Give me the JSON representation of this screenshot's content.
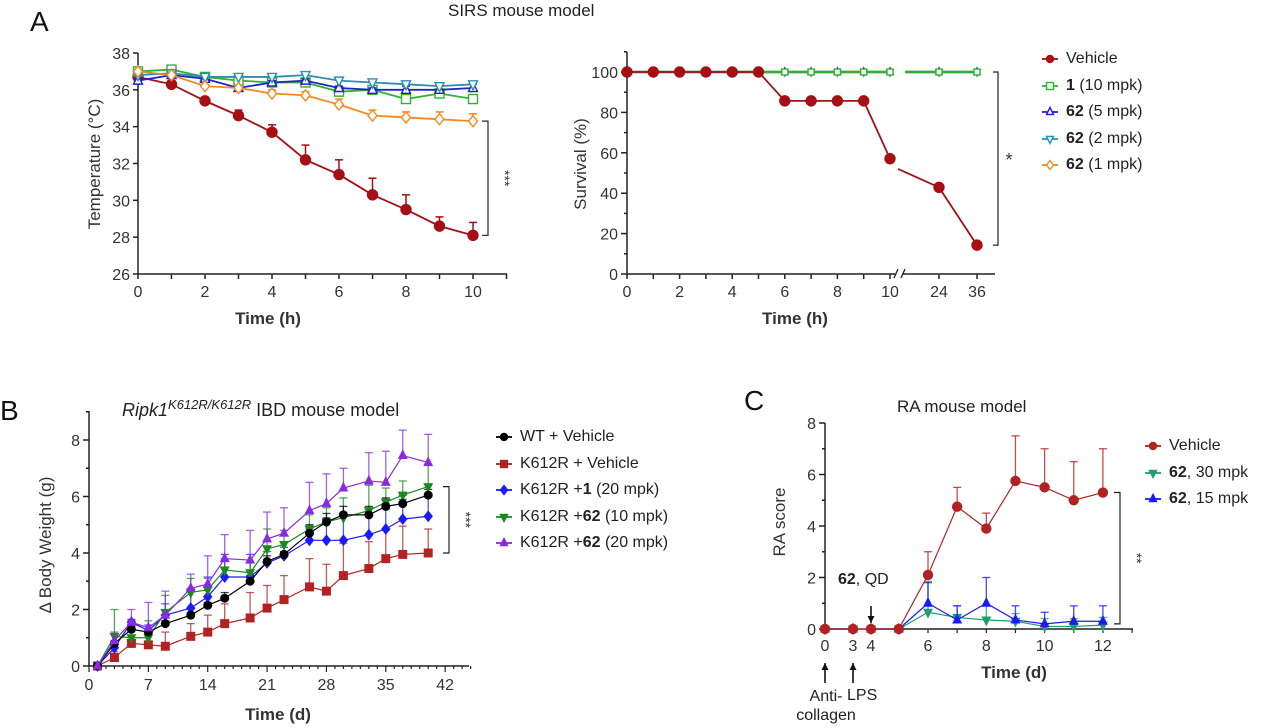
{
  "figure_title": "SIRS mouse model",
  "panel_letters": {
    "a": "A",
    "b": "B",
    "c": "C"
  },
  "chart_data": [
    {
      "id": "A-temperature",
      "type": "line",
      "title": "",
      "xlabel": "Time (h)",
      "ylabel": "Temperature (°C)",
      "xlim": [
        0,
        11
      ],
      "ylim": [
        26,
        38
      ],
      "xticks": [
        0,
        2,
        4,
        6,
        8,
        10
      ],
      "yticks": [
        26,
        28,
        30,
        32,
        34,
        36,
        38
      ],
      "x": [
        0,
        1,
        2,
        3,
        4,
        5,
        6,
        7,
        8,
        9,
        10
      ],
      "series": [
        {
          "name": "Vehicle",
          "color": "#a50f15",
          "marker": "circle-filled",
          "values": [
            36.7,
            36.3,
            35.4,
            34.6,
            33.7,
            32.2,
            31.4,
            30.3,
            29.5,
            28.6,
            28.1
          ],
          "err": [
            0.1,
            0.1,
            0.2,
            0.3,
            0.4,
            0.8,
            0.8,
            0.9,
            0.8,
            0.5,
            0.7
          ]
        },
        {
          "name": "1 (10 mpk)",
          "color": "#2db52d",
          "marker": "square-open",
          "values": [
            37.0,
            37.1,
            36.7,
            36.5,
            36.4,
            36.4,
            35.9,
            36.0,
            35.5,
            35.8,
            35.5
          ],
          "err": [
            0.1,
            0.1,
            0.1,
            0.1,
            0.1,
            0.1,
            0.1,
            0.1,
            0.1,
            0.1,
            0.1
          ]
        },
        {
          "name": "62 (5 mpk)",
          "color": "#2222c8",
          "marker": "triangle-up-open",
          "values": [
            36.5,
            36.8,
            36.6,
            36.1,
            36.4,
            36.5,
            36.1,
            36.0,
            36.0,
            36.0,
            36.1
          ],
          "err": [
            0.1,
            0.1,
            0.1,
            0.1,
            0.1,
            0.1,
            0.1,
            0.1,
            0.2,
            0.2,
            0.2
          ]
        },
        {
          "name": "62 (2 mpk)",
          "color": "#2a8fb0",
          "marker": "triangle-down-open",
          "values": [
            36.8,
            36.9,
            36.7,
            36.7,
            36.7,
            36.8,
            36.5,
            36.4,
            36.3,
            36.2,
            36.3
          ],
          "err": [
            0.1,
            0.1,
            0.1,
            0.1,
            0.1,
            0.1,
            0.1,
            0.1,
            0.1,
            0.1,
            0.1
          ]
        },
        {
          "name": "62 (1 mpk)",
          "color": "#f5891f",
          "marker": "diamond-open",
          "values": [
            37.0,
            36.8,
            36.2,
            36.1,
            35.8,
            35.7,
            35.2,
            34.6,
            34.5,
            34.4,
            34.3
          ],
          "err": [
            0.1,
            0.1,
            0.1,
            0.1,
            0.2,
            0.2,
            0.3,
            0.3,
            0.3,
            0.4,
            0.4
          ]
        }
      ],
      "annotations": [
        {
          "text": "***",
          "between": [
            "62 (1 mpk)",
            "Vehicle"
          ],
          "at_x": 10
        }
      ]
    },
    {
      "id": "A-survival",
      "type": "line",
      "title": "",
      "xlabel": "Time (h)",
      "ylabel": "Survival (%)",
      "ylim": [
        0,
        110
      ],
      "yticks": [
        0,
        20,
        40,
        60,
        80,
        100
      ],
      "x_broken_axis": true,
      "xticks": [
        "0",
        "2",
        "4",
        "6",
        "8",
        "10",
        "24",
        "36"
      ],
      "x": [
        0,
        1,
        2,
        3,
        4,
        5,
        6,
        7,
        8,
        9,
        10,
        24,
        36
      ],
      "series": [
        {
          "name": "Vehicle",
          "color": "#a50f15",
          "marker": "circle-filled",
          "values": [
            100,
            100,
            100,
            100,
            100,
            100,
            85.7,
            85.7,
            85.7,
            85.7,
            57.1,
            42.9,
            14.3
          ]
        },
        {
          "name": "1 (10 mpk)",
          "color": "#2db52d",
          "marker": "square-open",
          "values": [
            100,
            100,
            100,
            100,
            100,
            100,
            100,
            100,
            100,
            100,
            100,
            100,
            100
          ]
        },
        {
          "name": "62 (5 mpk)",
          "color": "#2222c8",
          "marker": "triangle-up-open",
          "values": [
            100,
            100,
            100,
            100,
            100,
            100,
            100,
            100,
            100,
            100,
            100,
            100,
            100
          ]
        },
        {
          "name": "62 (2 mpk)",
          "color": "#2a8fb0",
          "marker": "triangle-down-open",
          "values": [
            100,
            100,
            100,
            100,
            100,
            100,
            100,
            100,
            100,
            100,
            100,
            100,
            100
          ]
        },
        {
          "name": "62 (1 mpk)",
          "color": "#f5891f",
          "marker": "diamond-open",
          "values": [
            100,
            100,
            100,
            100,
            100,
            100,
            100,
            100,
            100,
            100,
            100,
            100,
            100
          ]
        }
      ],
      "annotations": [
        {
          "text": "*",
          "between": [
            "treated",
            "Vehicle"
          ],
          "at_x": 36
        }
      ]
    },
    {
      "id": "B-body-weight",
      "type": "line",
      "title_italic": "Ripk1",
      "title_sup": "K612R/K612R",
      "title_rest": " IBD mouse model",
      "xlabel": "Time (d)",
      "ylabel": "Δ Body Weight (g)",
      "xlim": [
        0,
        45
      ],
      "ylim": [
        0,
        9
      ],
      "xticks": [
        0,
        7,
        14,
        21,
        28,
        35,
        42
      ],
      "yticks": [
        0,
        2,
        4,
        6,
        8
      ],
      "x": [
        1,
        3,
        5,
        7,
        9,
        12,
        14,
        16,
        19,
        21,
        23,
        26,
        28,
        30,
        33,
        35,
        37,
        40
      ],
      "series": [
        {
          "name": "WT + Vehicle",
          "color": "#000000",
          "marker": "circle",
          "values": [
            0,
            0.8,
            1.3,
            1.2,
            1.5,
            1.8,
            2.15,
            2.4,
            3.0,
            3.7,
            3.95,
            4.7,
            5.1,
            5.35,
            5.35,
            5.65,
            5.75,
            6.05
          ],
          "err": [
            0,
            0.1,
            0.1,
            0.1,
            0.1,
            0.1,
            0.1,
            0.2,
            0.2,
            0.2,
            0.1,
            0.3,
            0.3,
            0.3,
            0.3,
            0.3,
            0.3,
            0.2
          ]
        },
        {
          "name": "K612R + Vehicle",
          "color": "#b22222",
          "marker": "square",
          "values": [
            0,
            0.3,
            0.8,
            0.75,
            0.7,
            1.05,
            1.2,
            1.5,
            1.7,
            2.05,
            2.35,
            2.8,
            2.65,
            3.2,
            3.45,
            3.8,
            3.95,
            4.0
          ],
          "err": [
            0,
            0.2,
            0.1,
            0.1,
            0.5,
            0.45,
            0.6,
            0.7,
            0.9,
            0.8,
            0.85,
            1.0,
            0.95,
            1.15,
            0.95,
            1.0,
            1.0,
            0.85
          ]
        },
        {
          "name": "K612R + 1 (20 mpk)",
          "color": "#1a1aff",
          "marker": "diamond",
          "values": [
            0,
            0.65,
            1.55,
            1.25,
            1.8,
            2.05,
            2.45,
            3.15,
            3.15,
            3.65,
            3.9,
            4.45,
            4.45,
            4.45,
            4.65,
            4.85,
            5.2,
            5.3
          ],
          "err": [
            0,
            0.2,
            0.1,
            0.2,
            0.4,
            0.7,
            0.7,
            0.8,
            0.8,
            0.4,
            0.3,
            0.4,
            0.8,
            0.9,
            0.9,
            0.9,
            0.7,
            0.8
          ]
        },
        {
          "name": "K612R + 62 (10 mpk)",
          "color": "#1a8a1a",
          "marker": "triangle-down",
          "values": [
            0,
            1.05,
            1.0,
            1.0,
            1.9,
            2.6,
            2.7,
            3.4,
            3.3,
            4.15,
            4.3,
            4.85,
            5.1,
            5.25,
            5.5,
            5.8,
            6.05,
            6.35
          ],
          "err": [
            0,
            0.95,
            0.6,
            0.6,
            0.6,
            0.5,
            0.4,
            0.4,
            0.4,
            0.7,
            0.5,
            0.5,
            0.5,
            0.7,
            0.9,
            0.5,
            0.5,
            0.8
          ]
        },
        {
          "name": "K612R + 62 (20 mpk)",
          "color": "#8a2be2",
          "marker": "triangle-up",
          "values": [
            0,
            0.9,
            1.55,
            1.35,
            1.8,
            2.75,
            2.9,
            3.8,
            3.75,
            4.5,
            4.7,
            5.5,
            5.75,
            6.3,
            6.55,
            6.5,
            7.45,
            7.2
          ],
          "err": [
            0,
            0.3,
            0.45,
            0.9,
            0.85,
            0.5,
            1.0,
            0.85,
            1.05,
            0.95,
            0.9,
            1.0,
            1.05,
            0.7,
            1.0,
            1.1,
            0.9,
            1.0
          ]
        }
      ],
      "annotations": [
        {
          "text": "***",
          "between": [
            "K612R + 62 (10 mpk)",
            "K612R + Vehicle"
          ],
          "at_x": 40
        }
      ]
    },
    {
      "id": "C-ra-score",
      "type": "line",
      "title": "RA mouse model",
      "xlabel": "Time (d)",
      "ylabel": "RA score",
      "ylim": [
        0,
        8
      ],
      "yticks": [
        0,
        2,
        4,
        6,
        8
      ],
      "xticks": [
        0,
        3,
        4,
        6,
        8,
        10,
        12
      ],
      "x": [
        0,
        3,
        4,
        5,
        6,
        7,
        8,
        9,
        10,
        11,
        12
      ],
      "series": [
        {
          "name": "Vehicle",
          "color": "#b22222",
          "marker": "circle",
          "values": [
            0,
            0,
            0,
            0,
            2.1,
            4.75,
            3.9,
            5.75,
            5.5,
            5.0,
            5.3
          ],
          "err": [
            0,
            0,
            0,
            0,
            0.9,
            0.75,
            0.6,
            1.75,
            1.5,
            1.5,
            1.7
          ]
        },
        {
          "name": "62, 30 mpk",
          "color": "#1f9e6e",
          "marker": "triangle-down",
          "values": [
            0,
            0,
            0,
            0,
            0.65,
            0.45,
            0.35,
            0.3,
            0.1,
            0.1,
            0.15
          ],
          "err": [
            0,
            0,
            0,
            0,
            1.2,
            0.45,
            0.55,
            0.3,
            0.3,
            0.3,
            0.3
          ]
        },
        {
          "name": "62, 15 mpk",
          "color": "#1a1aff",
          "marker": "triangle-up",
          "values": [
            0,
            0,
            0,
            0,
            1.0,
            0.35,
            1.0,
            0.35,
            0.2,
            0.3,
            0.3
          ],
          "err": [
            0,
            0,
            0,
            0,
            0.8,
            0.55,
            1.0,
            0.55,
            0.45,
            0.6,
            0.6
          ]
        }
      ],
      "annotations": [
        {
          "text": "**",
          "between": [
            "62, 15 mpk",
            "Vehicle"
          ],
          "at_x": 12
        },
        {
          "text": "62, QD",
          "arrow": "down",
          "at_x": 4
        },
        {
          "text": "Anti-collagen",
          "arrow": "up",
          "at_x": 0
        },
        {
          "text": "LPS",
          "arrow": "up",
          "at_x": 3
        }
      ]
    }
  ],
  "legends": {
    "a": [
      {
        "bold": "",
        "rest": "Vehicle"
      },
      {
        "bold": "1",
        "rest": " (10 mpk)"
      },
      {
        "bold": "62",
        "rest": " (5 mpk)"
      },
      {
        "bold": "62",
        "rest": " (2 mpk)"
      },
      {
        "bold": "62",
        "rest": " (1 mpk)"
      }
    ],
    "b": [
      {
        "pre": "WT + Vehicle",
        "bold": "",
        "rest": ""
      },
      {
        "pre": "K612R + Vehicle",
        "bold": "",
        "rest": ""
      },
      {
        "pre": "K612R + ",
        "bold": "1",
        "rest": " (20 mpk)"
      },
      {
        "pre": "K612R + ",
        "bold": "62",
        "rest": " (10 mpk)"
      },
      {
        "pre": "K612R + ",
        "bold": "62",
        "rest": " (20 mpk)"
      }
    ],
    "c": [
      {
        "bold": "",
        "rest": "Vehicle"
      },
      {
        "bold": "62",
        "rest": ", 30 mpk"
      },
      {
        "bold": "62",
        "rest": ", 15 mpk"
      }
    ]
  },
  "panel_c_labels": {
    "qd_bold": "62",
    "qd_rest": ", QD",
    "anti1": "Anti-",
    "anti2": "collagen",
    "lps": "LPS"
  }
}
